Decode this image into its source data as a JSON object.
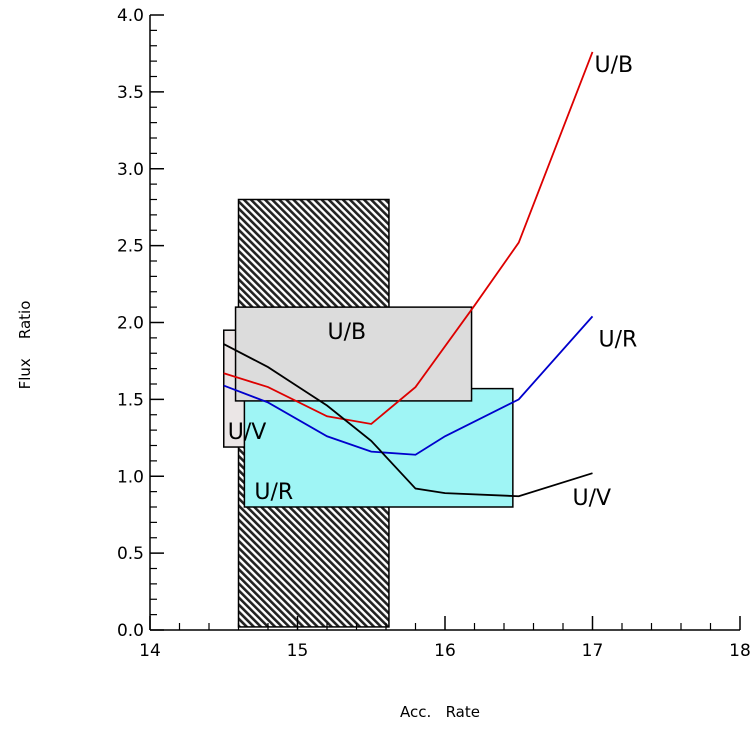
{
  "chart_data": {
    "type": "line",
    "xlabel": "Acc.   Rate",
    "ylabel": "Flux    Ratio",
    "xlim": [
      14,
      18
    ],
    "ylim": [
      0,
      4
    ],
    "xticks": [
      "14",
      "15",
      "16",
      "17",
      "18"
    ],
    "yticks": [
      "0.0",
      "0.5",
      "1.0",
      "1.5",
      "2.0",
      "2.5",
      "3.0",
      "3.5",
      "4.0"
    ],
    "grid": false,
    "regions": [
      {
        "label": "",
        "pattern": "hatched",
        "x": [
          14.6,
          15.62
        ],
        "y": [
          0.02,
          2.8
        ],
        "color": "#222222"
      },
      {
        "label": "U/V",
        "pattern": "solid",
        "x": [
          14.5,
          15.6
        ],
        "y": [
          1.19,
          1.95
        ],
        "color": "#ebe6e6"
      },
      {
        "label": "U/R",
        "pattern": "solid",
        "x": [
          14.64,
          16.46
        ],
        "y": [
          0.8,
          1.57
        ],
        "color": "#9ff5f5"
      },
      {
        "label": "U/B",
        "pattern": "solid",
        "x": [
          14.58,
          16.18
        ],
        "y": [
          1.49,
          2.1
        ],
        "color": "#dcdcdc"
      }
    ],
    "series": [
      {
        "name": "U/B",
        "color": "#dd0000",
        "x": [
          14.5,
          14.8,
          15.2,
          15.5,
          15.8,
          16.2,
          16.5,
          17.0
        ],
        "y": [
          1.67,
          1.58,
          1.39,
          1.34,
          1.58,
          2.11,
          2.52,
          3.76
        ]
      },
      {
        "name": "U/R",
        "color": "#0000cc",
        "x": [
          14.5,
          14.8,
          15.2,
          15.5,
          15.8,
          16.0,
          16.5,
          17.0
        ],
        "y": [
          1.59,
          1.48,
          1.26,
          1.16,
          1.14,
          1.26,
          1.5,
          2.04
        ]
      },
      {
        "name": "U/V",
        "color": "#000000",
        "x": [
          14.5,
          14.8,
          15.2,
          15.5,
          15.8,
          16.0,
          16.5,
          17.0
        ],
        "y": [
          1.86,
          1.71,
          1.46,
          1.23,
          0.92,
          0.89,
          0.87,
          1.02
        ]
      }
    ]
  }
}
